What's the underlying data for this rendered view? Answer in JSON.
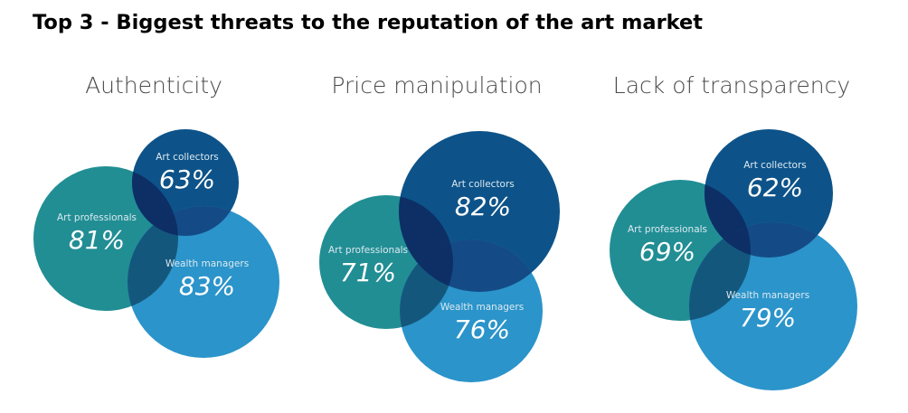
{
  "page_title": "Top 3 - Biggest threats to the reputation of the art market",
  "colors": {
    "art_professionals": "#218e94",
    "art_collectors": "#0d5389",
    "wealth_managers": "#2b94ca",
    "overlap_all": "#0d2f66",
    "overlap_pw": "#14577d",
    "overlap_cw": "#144b86"
  },
  "chart_data": [
    {
      "type": "venn",
      "title": "Authenticity",
      "sets": [
        {
          "label": "Art professionals",
          "value": "81%"
        },
        {
          "label": "Art collectors",
          "value": "63%"
        },
        {
          "label": "Wealth managers",
          "value": "83%"
        }
      ]
    },
    {
      "type": "venn",
      "title": "Price manipulation",
      "sets": [
        {
          "label": "Art professionals",
          "value": "71%"
        },
        {
          "label": "Art collectors",
          "value": "82%"
        },
        {
          "label": "Wealth managers",
          "value": "76%"
        }
      ]
    },
    {
      "type": "venn",
      "title": "Lack of transparency",
      "sets": [
        {
          "label": "Art professionals",
          "value": "69%"
        },
        {
          "label": "Art collectors",
          "value": "62%"
        },
        {
          "label": "Wealth managers",
          "value": "79%"
        }
      ]
    }
  ]
}
